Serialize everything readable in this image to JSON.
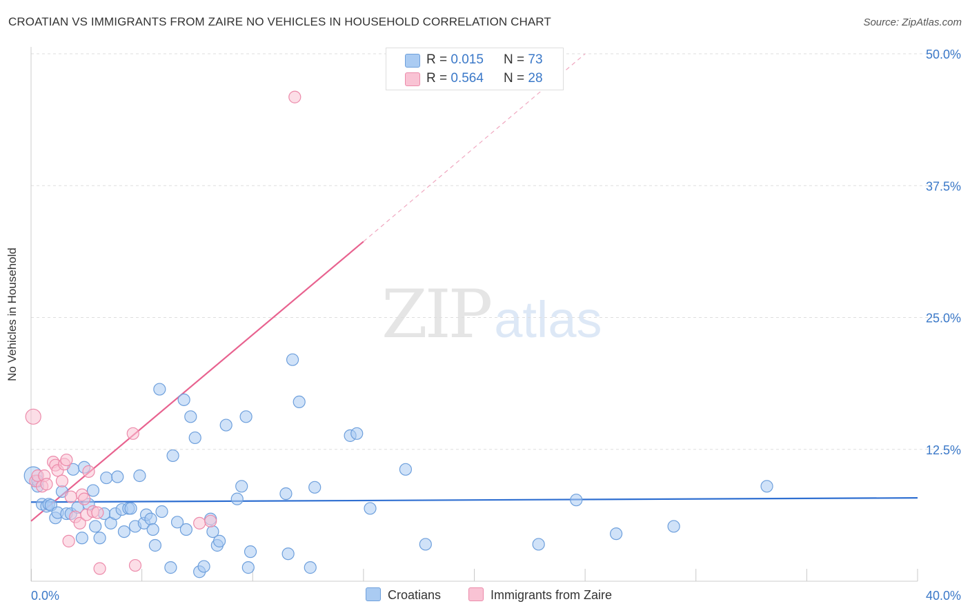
{
  "header": {
    "title": "CROATIAN VS IMMIGRANTS FROM ZAIRE NO VEHICLES IN HOUSEHOLD CORRELATION CHART",
    "source": "Source: ZipAtlas.com"
  },
  "watermark": {
    "part1": "ZIP",
    "part2": "atlas"
  },
  "legend": {
    "items": [
      {
        "r_label": "R = ",
        "r_value": "0.015",
        "n_label": "N = ",
        "n_value": "73",
        "color": "#9ec3ee"
      },
      {
        "r_label": "R = ",
        "r_value": "0.564",
        "n_label": "N = ",
        "n_value": "28",
        "color": "#f7b6c9"
      }
    ]
  },
  "bottom_legend": {
    "croatians": "Croatians",
    "zaire": "Immigrants from Zaire"
  },
  "colors": {
    "blue_fill": "#aacbf2",
    "blue_stroke": "#6d9fdc",
    "blue_line": "#2f6fd1",
    "pink_fill": "#f9c3d4",
    "pink_stroke": "#ec8aaa",
    "pink_line": "#e8628f",
    "grid": "#dddddd",
    "axis_label": "#3a78c8"
  },
  "chart_data": {
    "type": "scatter",
    "title": "CROATIAN VS IMMIGRANTS FROM ZAIRE NO VEHICLES IN HOUSEHOLD CORRELATION CHART",
    "xlabel": "",
    "ylabel": "No Vehicles in Household",
    "xlim": [
      0,
      40
    ],
    "ylim": [
      0,
      50
    ],
    "x_tick_labels": [
      {
        "value": 0,
        "label": "0.0%"
      },
      {
        "value": 40,
        "label": "40.0%"
      }
    ],
    "y_tick_labels": [
      {
        "value": 12.5,
        "label": "12.5%"
      },
      {
        "value": 25,
        "label": "25.0%"
      },
      {
        "value": 37.5,
        "label": "37.5%"
      },
      {
        "value": 50,
        "label": "50.0%"
      }
    ],
    "series": [
      {
        "name": "Croatians",
        "points": [
          [
            0.1,
            10.0
          ],
          [
            0.3,
            9.0
          ],
          [
            0.5,
            7.3
          ],
          [
            0.7,
            7.1
          ],
          [
            0.8,
            7.3
          ],
          [
            0.9,
            7.2
          ],
          [
            1.1,
            6.0
          ],
          [
            1.2,
            6.5
          ],
          [
            1.4,
            8.5
          ],
          [
            1.6,
            6.4
          ],
          [
            1.8,
            6.4
          ],
          [
            1.9,
            10.6
          ],
          [
            2.1,
            7.0
          ],
          [
            2.3,
            4.1
          ],
          [
            2.4,
            10.8
          ],
          [
            2.6,
            7.3
          ],
          [
            2.8,
            8.6
          ],
          [
            2.9,
            5.2
          ],
          [
            3.1,
            4.1
          ],
          [
            3.3,
            6.4
          ],
          [
            3.4,
            9.8
          ],
          [
            3.6,
            5.5
          ],
          [
            3.8,
            6.4
          ],
          [
            3.9,
            9.9
          ],
          [
            4.1,
            6.8
          ],
          [
            4.2,
            4.7
          ],
          [
            4.4,
            6.9
          ],
          [
            4.5,
            6.9
          ],
          [
            4.7,
            5.2
          ],
          [
            4.9,
            10.0
          ],
          [
            5.1,
            5.5
          ],
          [
            5.2,
            6.3
          ],
          [
            5.4,
            5.9
          ],
          [
            5.5,
            4.9
          ],
          [
            5.6,
            3.4
          ],
          [
            5.8,
            18.2
          ],
          [
            5.9,
            6.6
          ],
          [
            6.3,
            1.3
          ],
          [
            6.4,
            11.9
          ],
          [
            6.6,
            5.6
          ],
          [
            6.9,
            17.2
          ],
          [
            7.0,
            4.9
          ],
          [
            7.2,
            15.6
          ],
          [
            7.4,
            13.6
          ],
          [
            7.6,
            0.9
          ],
          [
            7.8,
            1.4
          ],
          [
            8.1,
            5.9
          ],
          [
            8.2,
            4.7
          ],
          [
            8.4,
            3.4
          ],
          [
            8.5,
            3.8
          ],
          [
            8.8,
            14.8
          ],
          [
            9.3,
            7.8
          ],
          [
            9.5,
            9.0
          ],
          [
            9.7,
            15.6
          ],
          [
            9.8,
            1.3
          ],
          [
            9.9,
            2.8
          ],
          [
            11.5,
            8.3
          ],
          [
            11.6,
            2.6
          ],
          [
            11.8,
            21.0
          ],
          [
            12.1,
            17.0
          ],
          [
            12.6,
            1.3
          ],
          [
            12.8,
            8.9
          ],
          [
            14.4,
            13.8
          ],
          [
            14.7,
            14.0
          ],
          [
            15.3,
            6.9
          ],
          [
            16.9,
            10.6
          ],
          [
            17.8,
            3.5
          ],
          [
            22.9,
            3.5
          ],
          [
            24.6,
            7.7
          ],
          [
            26.4,
            4.5
          ],
          [
            29.0,
            5.2
          ],
          [
            33.2,
            9.0
          ],
          [
            0.3,
            9.5
          ]
        ]
      },
      {
        "name": "Immigrants from Zaire",
        "points": [
          [
            0.1,
            15.6
          ],
          [
            0.2,
            9.5
          ],
          [
            0.3,
            10.0
          ],
          [
            0.5,
            9.0
          ],
          [
            0.6,
            10.0
          ],
          [
            0.7,
            9.2
          ],
          [
            1.0,
            11.3
          ],
          [
            1.1,
            11.0
          ],
          [
            1.2,
            10.5
          ],
          [
            1.4,
            9.5
          ],
          [
            1.5,
            11.1
          ],
          [
            1.6,
            11.5
          ],
          [
            1.7,
            3.8
          ],
          [
            1.8,
            8.0
          ],
          [
            2.0,
            6.1
          ],
          [
            2.2,
            5.5
          ],
          [
            2.3,
            8.2
          ],
          [
            2.4,
            7.8
          ],
          [
            2.5,
            6.3
          ],
          [
            2.6,
            10.4
          ],
          [
            2.8,
            6.6
          ],
          [
            3.0,
            6.5
          ],
          [
            3.1,
            1.2
          ],
          [
            4.6,
            14.0
          ],
          [
            4.7,
            1.5
          ],
          [
            7.6,
            5.5
          ],
          [
            8.1,
            5.7
          ],
          [
            11.9,
            45.9
          ]
        ]
      }
    ],
    "trend_lines": [
      {
        "series": "Croatians",
        "x": [
          0,
          40
        ],
        "y": [
          7.5,
          7.9
        ]
      },
      {
        "series": "Immigrants from Zaire",
        "x": [
          0,
          15.0
        ],
        "y": [
          5.7,
          32.2
        ],
        "dashed_extension_to": [
          25.0,
          50.0
        ]
      }
    ],
    "stats": [
      {
        "series": "Croatians",
        "R": 0.015,
        "N": 73
      },
      {
        "series": "Immigrants from Zaire",
        "R": 0.564,
        "N": 28
      }
    ]
  }
}
